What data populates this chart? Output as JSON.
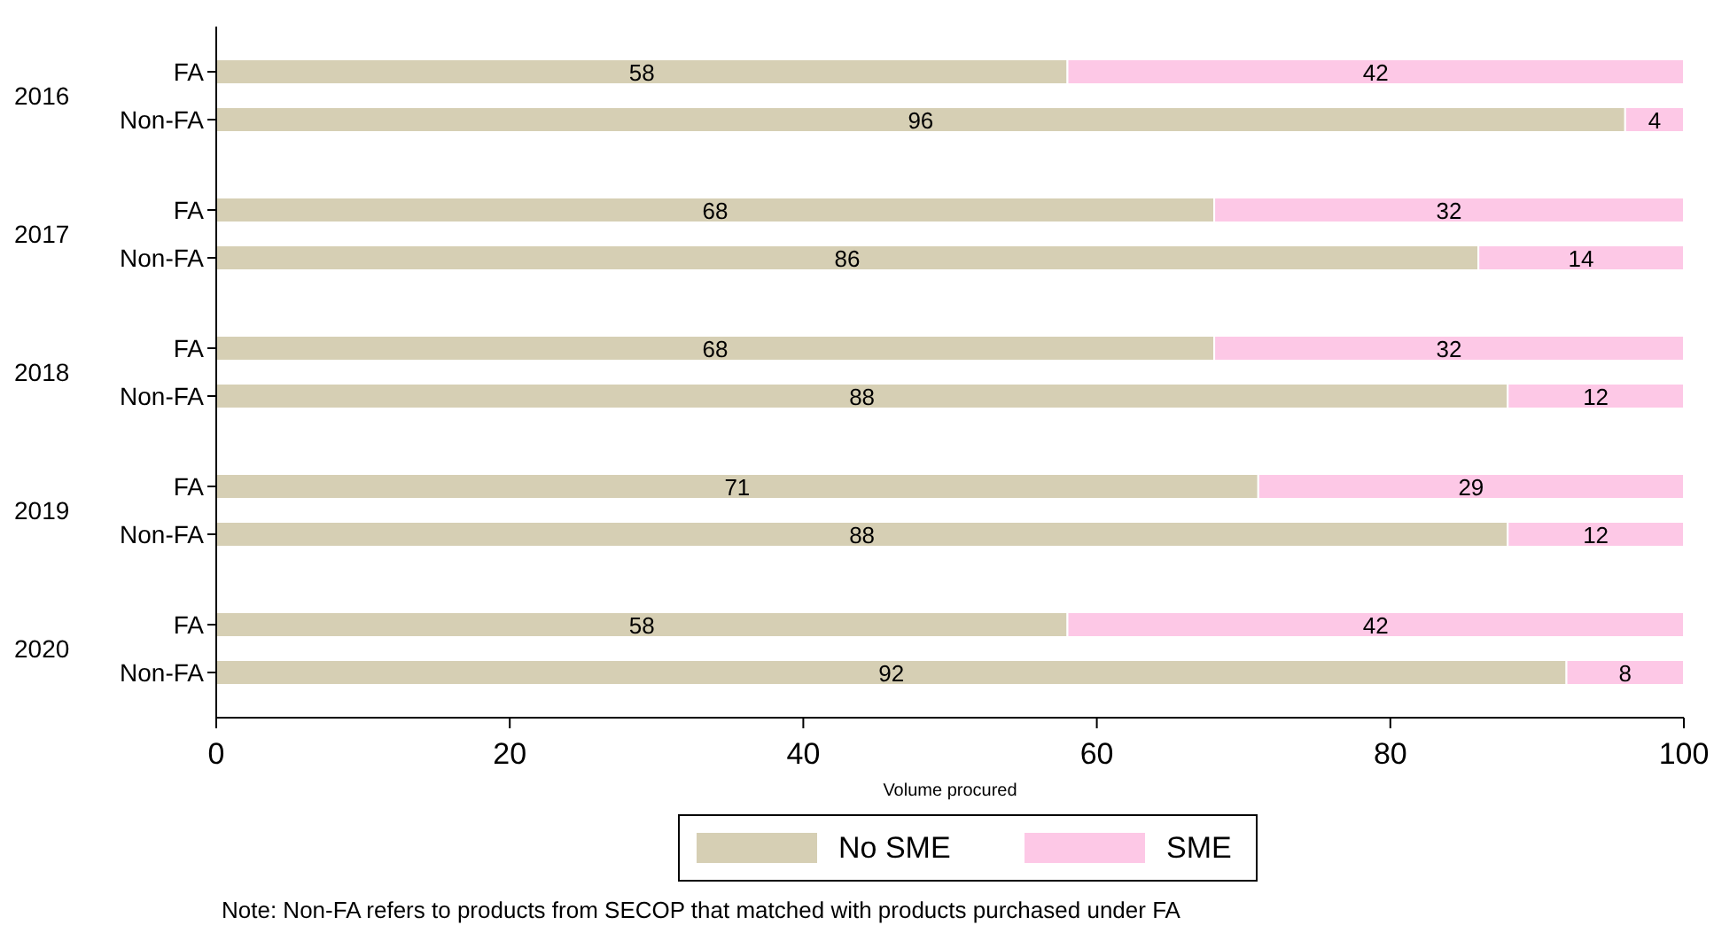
{
  "chart_data": {
    "type": "bar",
    "orientation": "horizontal",
    "stacked": true,
    "data_labels": true,
    "xlabel": "Volume procured",
    "categories": [
      "FA",
      "Non-FA",
      "FA",
      "Non-FA",
      "FA",
      "Non-FA",
      "FA",
      "Non-FA",
      "FA",
      "Non-FA"
    ],
    "series": [
      {
        "name": "No SME",
        "color": "#d6cfb4",
        "values": [
          58,
          96,
          68,
          86,
          68,
          88,
          71,
          88,
          58,
          92
        ]
      },
      {
        "name": "SME",
        "color": "#fdc8e6",
        "values": [
          42,
          4,
          32,
          14,
          32,
          12,
          29,
          12,
          42,
          8
        ]
      }
    ],
    "xlim": [
      0,
      100
    ],
    "xticks": [
      0,
      20,
      40,
      60,
      80,
      100
    ],
    "grid": false,
    "legend": "bottom",
    "annotations": [
      "2016",
      "2017",
      "2018",
      "2019",
      "2020",
      "Note: Non-FA refers to products from SECOP that matched with products purchased under FA"
    ]
  }
}
